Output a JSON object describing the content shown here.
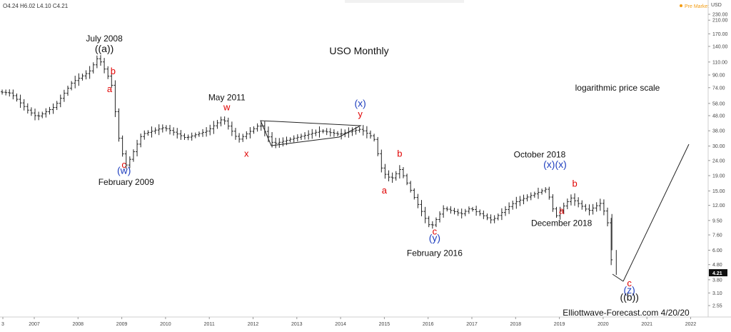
{
  "header": {
    "ohlc": "O4.24 H6.02 L4.10 C4.21",
    "currency": "USD",
    "premarket": "Pre Market",
    "last_price": "4.21"
  },
  "chart_data": {
    "type": "ohlc",
    "title": "USO Monthly",
    "note": "logarithmic price scale",
    "credit": "Elliottwave-Forecast.com 4/20/20",
    "scale": "log",
    "x_ticks": [
      "3",
      "2007",
      "2008",
      "2009",
      "2010",
      "2011",
      "2012",
      "2013",
      "2014",
      "2015",
      "2016",
      "2017",
      "2018",
      "2019",
      "2020",
      "2021",
      "2022"
    ],
    "y_ticks": [
      "230.00",
      "210.00",
      "170.00",
      "140.00",
      "110.00",
      "90.00",
      "74.00",
      "58.00",
      "48.00",
      "38.00",
      "30.00",
      "24.00",
      "19.00",
      "15.00",
      "12.00",
      "9.50",
      "7.60",
      "6.00",
      "4.80",
      "3.80",
      "3.10",
      "2.55"
    ],
    "price_path": [
      {
        "t": 2006.1,
        "p": 70
      },
      {
        "t": 2006.5,
        "p": 68
      },
      {
        "t": 2006.9,
        "p": 52
      },
      {
        "t": 2007.1,
        "p": 47
      },
      {
        "t": 2007.5,
        "p": 55
      },
      {
        "t": 2007.9,
        "p": 80
      },
      {
        "t": 2008.3,
        "p": 95
      },
      {
        "t": 2008.5,
        "p": 119
      },
      {
        "t": 2008.8,
        "p": 80
      },
      {
        "t": 2009.0,
        "p": 30
      },
      {
        "t": 2009.15,
        "p": 22
      },
      {
        "t": 2009.5,
        "p": 36
      },
      {
        "t": 2010.0,
        "p": 40
      },
      {
        "t": 2010.5,
        "p": 34
      },
      {
        "t": 2011.0,
        "p": 38
      },
      {
        "t": 2011.35,
        "p": 46
      },
      {
        "t": 2011.7,
        "p": 33
      },
      {
        "t": 2012.2,
        "p": 42
      },
      {
        "t": 2012.5,
        "p": 31
      },
      {
        "t": 2013.0,
        "p": 34
      },
      {
        "t": 2013.6,
        "p": 38
      },
      {
        "t": 2014.0,
        "p": 36
      },
      {
        "t": 2014.5,
        "p": 39
      },
      {
        "t": 2014.8,
        "p": 34
      },
      {
        "t": 2015.0,
        "p": 20
      },
      {
        "t": 2015.2,
        "p": 18
      },
      {
        "t": 2015.4,
        "p": 21
      },
      {
        "t": 2015.7,
        "p": 14
      },
      {
        "t": 2016.0,
        "p": 9.5
      },
      {
        "t": 2016.1,
        "p": 8.5
      },
      {
        "t": 2016.4,
        "p": 11.5
      },
      {
        "t": 2016.8,
        "p": 10.5
      },
      {
        "t": 2017.0,
        "p": 11.5
      },
      {
        "t": 2017.5,
        "p": 9.5
      },
      {
        "t": 2018.0,
        "p": 12.5
      },
      {
        "t": 2018.75,
        "p": 15.5
      },
      {
        "t": 2018.95,
        "p": 10
      },
      {
        "t": 2019.1,
        "p": 11.5
      },
      {
        "t": 2019.3,
        "p": 13.5
      },
      {
        "t": 2019.7,
        "p": 11
      },
      {
        "t": 2020.0,
        "p": 12.5
      },
      {
        "t": 2020.15,
        "p": 9
      },
      {
        "t": 2020.25,
        "p": 4.3
      }
    ],
    "labels": [
      {
        "text": "July 2008",
        "color": "black",
        "t": 2008.6,
        "p": 151,
        "size": 12
      },
      {
        "text": "((a))",
        "color": "black",
        "t": 2008.6,
        "p": 128,
        "size": 14
      },
      {
        "text": "b",
        "color": "red",
        "t": 2008.8,
        "p": 91
      },
      {
        "text": "a",
        "color": "red",
        "t": 2008.72,
        "p": 69
      },
      {
        "text": "c",
        "color": "red",
        "t": 2009.05,
        "p": 21.5
      },
      {
        "text": "(w)",
        "color": "blue",
        "t": 2009.05,
        "p": 19.5
      },
      {
        "text": "February 2009",
        "color": "black",
        "t": 2009.1,
        "p": 16.5,
        "size": 12
      },
      {
        "text": "May 2011",
        "color": "black",
        "t": 2011.4,
        "p": 61,
        "size": 12
      },
      {
        "text": "w",
        "color": "red",
        "t": 2011.4,
        "p": 52
      },
      {
        "text": "x",
        "color": "red",
        "t": 2011.85,
        "p": 25.5
      },
      {
        "text": "(x)",
        "color": "blue",
        "t": 2014.45,
        "p": 55
      },
      {
        "text": "y",
        "color": "red",
        "t": 2014.45,
        "p": 47
      },
      {
        "text": "b",
        "color": "red",
        "t": 2015.35,
        "p": 25.5
      },
      {
        "text": "a",
        "color": "red",
        "t": 2015.0,
        "p": 14.4
      },
      {
        "text": "c",
        "color": "red",
        "t": 2016.15,
        "p": 7.65
      },
      {
        "text": "(y)",
        "color": "blue",
        "t": 2016.15,
        "p": 6.9
      },
      {
        "text": "February 2016",
        "color": "black",
        "t": 2016.15,
        "p": 5.5,
        "size": 12
      },
      {
        "text": "October 2018",
        "color": "black",
        "t": 2018.55,
        "p": 25.2,
        "size": 12
      },
      {
        "text": "(x)(x)",
        "color": "blue",
        "t": 2018.9,
        "p": 21.4
      },
      {
        "text": "b",
        "color": "red",
        "t": 2019.35,
        "p": 16.0
      },
      {
        "text": "a",
        "color": "red",
        "t": 2019.05,
        "p": 10.5
      },
      {
        "text": "December 2018",
        "color": "black",
        "t": 2019.05,
        "p": 8.75,
        "size": 12
      },
      {
        "text": "c",
        "color": "red",
        "t": 2020.6,
        "p": 3.43
      },
      {
        "text": "(z)",
        "color": "blue",
        "t": 2020.6,
        "p": 3.08
      },
      {
        "text": "((b))",
        "color": "black",
        "t": 2020.6,
        "p": 2.75,
        "size": 14
      }
    ]
  }
}
